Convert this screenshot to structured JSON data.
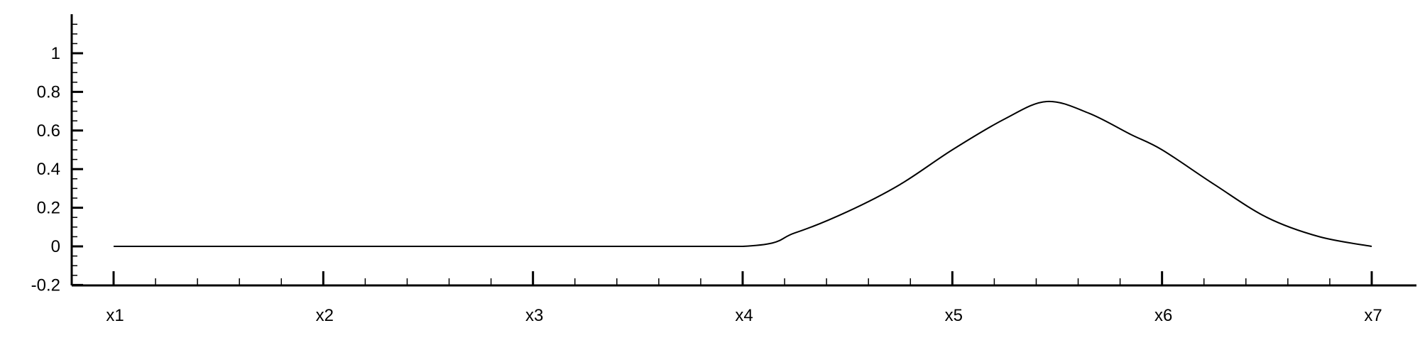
{
  "chart_data": {
    "type": "line",
    "title": "",
    "xlabel": "",
    "ylabel": "",
    "xlim": [
      1,
      7
    ],
    "ylim": [
      -0.2,
      1.2
    ],
    "x_ticks": [
      "x1",
      "x2",
      "x3",
      "x4",
      "x5",
      "x6",
      "x7"
    ],
    "y_ticks": [
      "1",
      "0.8",
      "0.6",
      "0.4",
      "0.2",
      "0",
      "-0.2"
    ],
    "grid": false,
    "series": [
      {
        "x": [
          1,
          2,
          3,
          4,
          4.25,
          4.5,
          4.75,
          5,
          5.25,
          5.45,
          5.65,
          5.85,
          6,
          6.25,
          6.5,
          6.75,
          7
        ],
        "y": [
          0,
          0,
          0,
          0,
          0.07,
          0.18,
          0.32,
          0.5,
          0.66,
          0.75,
          0.69,
          0.58,
          0.5,
          0.32,
          0.15,
          0.05,
          0
        ]
      }
    ]
  }
}
